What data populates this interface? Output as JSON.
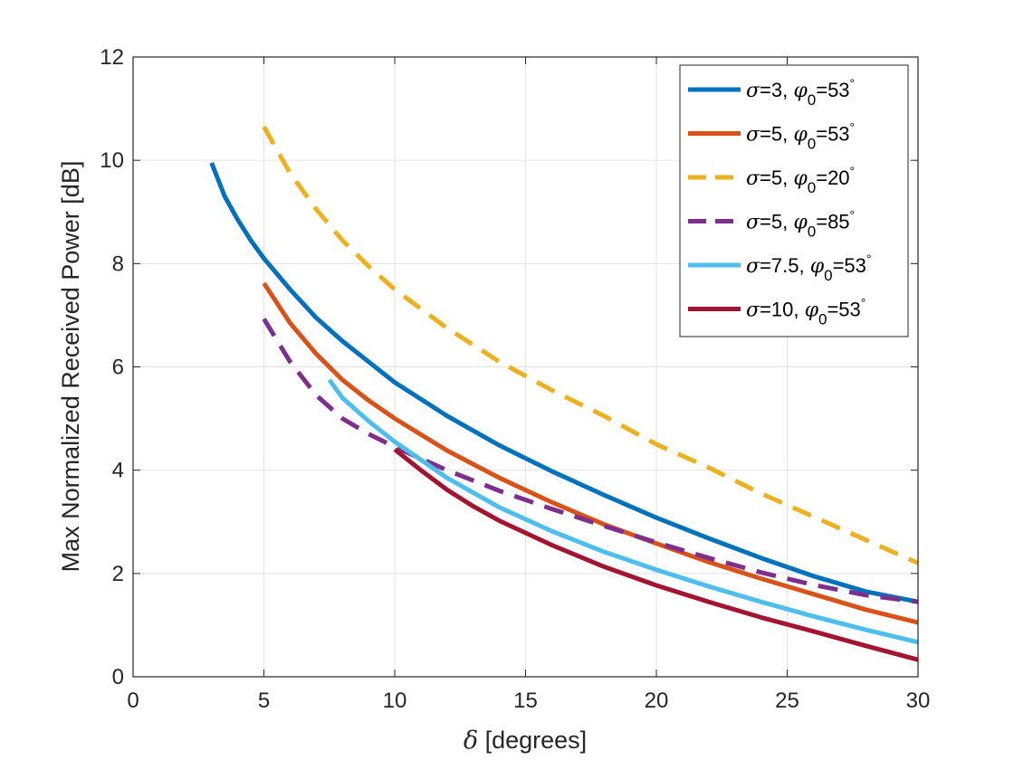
{
  "chart_data": {
    "type": "line",
    "xlabel_symbol": "δ",
    "xlabel_text": " [degrees]",
    "ylabel": "Max Normalized Received Power [dB]",
    "xlim": [
      0,
      30
    ],
    "ylim": [
      0,
      12
    ],
    "xticks": [
      "0",
      "5",
      "10",
      "15",
      "20",
      "25",
      "30"
    ],
    "yticks": [
      "0",
      "2",
      "4",
      "6",
      "8",
      "10",
      "12"
    ],
    "grid": true,
    "legend_position": "top-right",
    "series": [
      {
        "legend": {
          "sigma": "3",
          "phi": "53"
        },
        "color": "#0072BD",
        "style": "solid",
        "x": [
          3,
          3.5,
          4,
          4.5,
          5,
          6,
          7,
          8,
          9,
          10,
          12,
          14,
          16,
          18,
          20,
          22,
          24,
          26,
          28,
          30
        ],
        "y": [
          9.95,
          9.3,
          8.85,
          8.45,
          8.1,
          7.5,
          6.95,
          6.5,
          6.1,
          5.7,
          5.05,
          4.48,
          3.98,
          3.52,
          3.08,
          2.68,
          2.3,
          1.95,
          1.65,
          1.45
        ]
      },
      {
        "legend": {
          "sigma": "5",
          "phi": "53"
        },
        "color": "#D95319",
        "style": "solid",
        "x": [
          5,
          6,
          7,
          8,
          9,
          10,
          12,
          14,
          16,
          18,
          20,
          22,
          24,
          26,
          28,
          30
        ],
        "y": [
          7.62,
          6.85,
          6.25,
          5.75,
          5.35,
          5.0,
          4.38,
          3.85,
          3.38,
          2.95,
          2.58,
          2.22,
          1.9,
          1.6,
          1.3,
          1.05
        ]
      },
      {
        "legend": {
          "sigma": "5",
          "phi": "20"
        },
        "color": "#EDB120",
        "style": "dashed",
        "x": [
          5,
          6,
          7,
          8,
          9,
          10,
          12,
          14,
          16,
          18,
          20,
          22,
          24,
          26,
          28,
          30
        ],
        "y": [
          10.65,
          9.75,
          9.05,
          8.45,
          7.95,
          7.5,
          6.75,
          6.1,
          5.55,
          5.05,
          4.5,
          4.05,
          3.55,
          3.1,
          2.65,
          2.2
        ]
      },
      {
        "legend": {
          "sigma": "5",
          "phi": "85"
        },
        "color": "#7E2F8E",
        "style": "dashed",
        "x": [
          5,
          6,
          7,
          8,
          9,
          10,
          12,
          14,
          16,
          18,
          20,
          22,
          24,
          26,
          28,
          30
        ],
        "y": [
          6.93,
          6.1,
          5.45,
          5.0,
          4.7,
          4.45,
          4.0,
          3.6,
          3.25,
          2.92,
          2.6,
          2.3,
          2.02,
          1.78,
          1.58,
          1.45
        ]
      },
      {
        "legend": {
          "sigma": "7.5",
          "phi": "53"
        },
        "color": "#4DBEEE",
        "style": "solid",
        "x": [
          7.5,
          8,
          9,
          10,
          12,
          14,
          16,
          18,
          20,
          22,
          24,
          26,
          28,
          30
        ],
        "y": [
          5.75,
          5.4,
          4.95,
          4.55,
          3.85,
          3.28,
          2.82,
          2.42,
          2.07,
          1.75,
          1.45,
          1.17,
          0.91,
          0.67
        ]
      },
      {
        "legend": {
          "sigma": "10",
          "phi": "53"
        },
        "color": "#A2142F",
        "style": "solid",
        "x": [
          10,
          11,
          12,
          13,
          14,
          16,
          18,
          20,
          22,
          24,
          26,
          28,
          30
        ],
        "y": [
          4.4,
          4.0,
          3.62,
          3.3,
          3.02,
          2.55,
          2.13,
          1.77,
          1.45,
          1.15,
          0.88,
          0.6,
          0.33
        ]
      }
    ]
  }
}
